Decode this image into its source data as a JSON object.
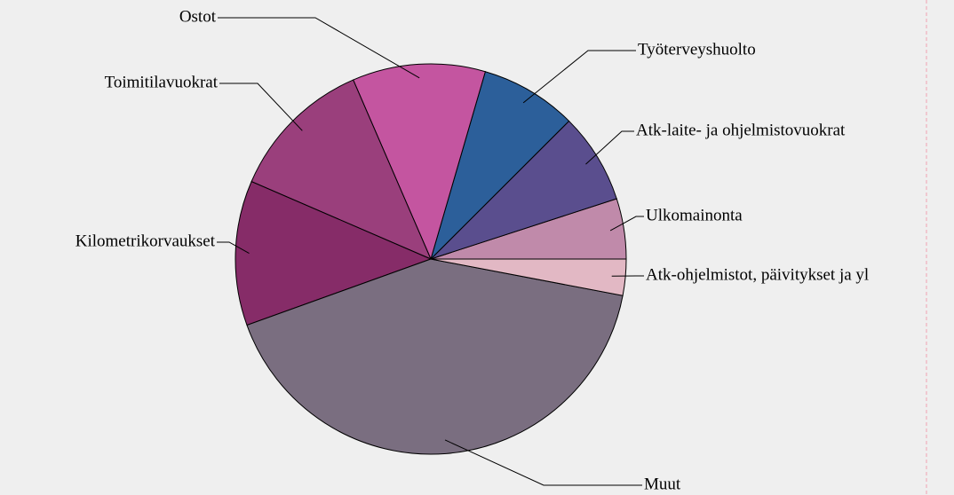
{
  "chart_data": {
    "type": "pie",
    "categories": [
      "Ulkomainonta",
      "Atk-laite- ja ohjelmistovuokrat",
      "Työterveyshuolto",
      "Ostot",
      "Toimitilavuokrat",
      "Kilometrikorvaukset",
      "Muut",
      "Atk-ohjelmistot, päivitykset ja yl"
    ],
    "values": [
      5,
      7.5,
      8,
      11,
      12,
      12,
      41.5,
      3
    ],
    "colors": [
      "#c08aaa",
      "#5a4e8e",
      "#2c5f9a",
      "#c455a0",
      "#9a3f7c",
      "#862c68",
      "#7a6e80",
      "#e2b8c4"
    ]
  }
}
